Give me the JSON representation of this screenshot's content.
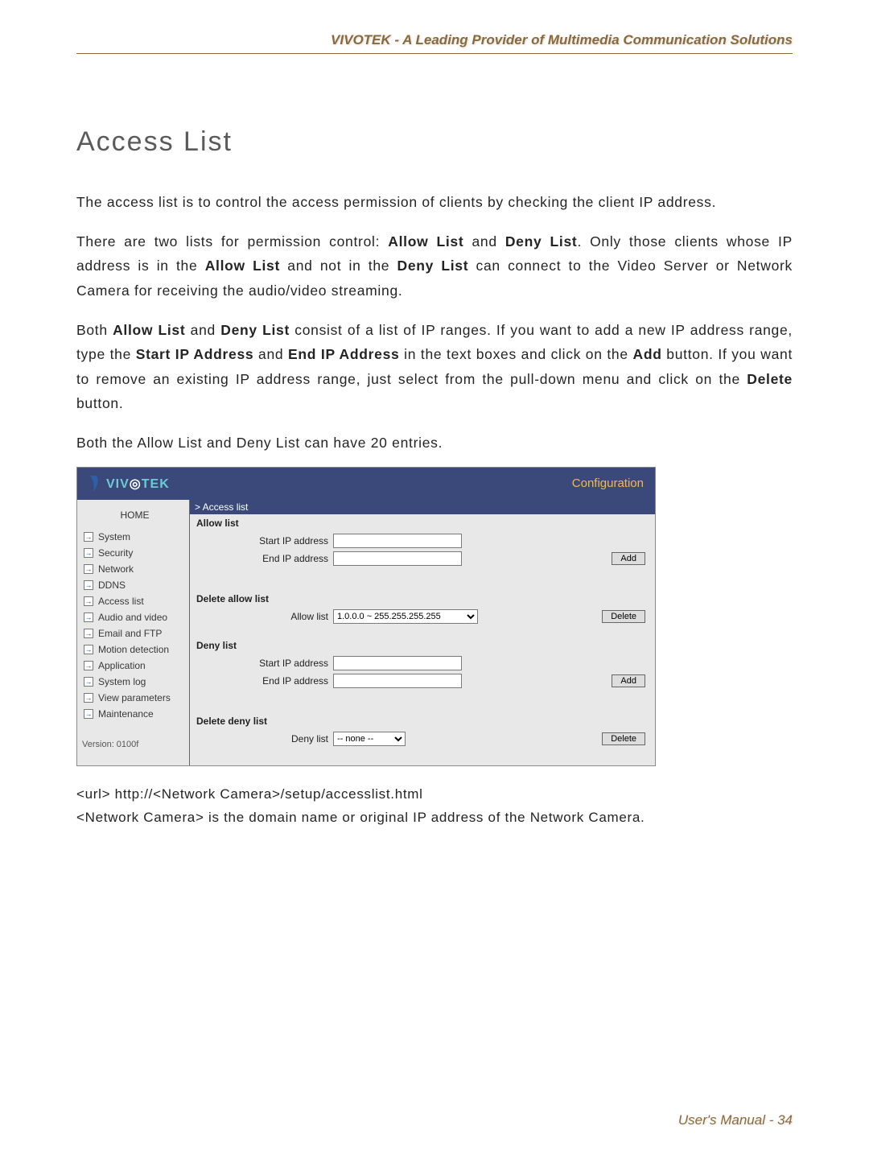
{
  "header": "VIVOTEK - A Leading Provider of Multimedia Communication Solutions",
  "title": "Access List",
  "para1": "The access list is to control the access permission of clients by checking the client IP address.",
  "para2_a": "There are two lists for permission control: ",
  "para2_b": "Allow List",
  "para2_c": " and ",
  "para2_d": "Deny List",
  "para2_e": ". Only those clients whose IP address is in the ",
  "para2_f": "Allow List",
  "para2_g": " and not in the ",
  "para2_h": "Deny List",
  "para2_i": " can connect to the Video Server or Network Camera for receiving the audio/video streaming.",
  "para3_a": "Both ",
  "para3_b": "Allow List",
  "para3_c": " and ",
  "para3_d": "Deny List",
  "para3_e": " consist of a list of IP ranges. If you want to add a new IP address range, type the ",
  "para3_f": "Start IP Address",
  "para3_g": " and ",
  "para3_h": "End IP Address",
  "para3_i": " in the text boxes and click on the ",
  "para3_j": "Add",
  "para3_k": " button. If you want to remove an existing IP address range, just select from the pull-down menu and click on the ",
  "para3_l": "Delete",
  "para3_m": " button.",
  "para4": "Both the Allow List and Deny List can have 20 entries.",
  "ss": {
    "logo_text": "VIV   TEK",
    "conf": "Configuration",
    "side_home": "HOME",
    "side": [
      "System",
      "Security",
      "Network",
      "DDNS",
      "Access list",
      "Audio and video",
      "Email and FTP",
      "Motion detection",
      "Application",
      "System log",
      "View parameters",
      "Maintenance"
    ],
    "version": "Version: 0100f",
    "crumb": "> Access list",
    "allow_title": "Allow list",
    "start_ip": "Start IP address",
    "end_ip": "End IP address",
    "add": "Add",
    "del_allow_title": "Delete allow list",
    "allow_list_label": "Allow list",
    "allow_opt": "1.0.0.0 ~ 255.255.255.255",
    "delete": "Delete",
    "deny_title": "Deny list",
    "del_deny_title": "Delete deny list",
    "deny_list_label": "Deny list",
    "deny_opt": "-- none --"
  },
  "url1": "<url> http://<Network Camera>/setup/accesslist.html",
  "url2": "<Network Camera> is the domain name or original IP address of the Network Camera.",
  "footer": "User's Manual - 34"
}
